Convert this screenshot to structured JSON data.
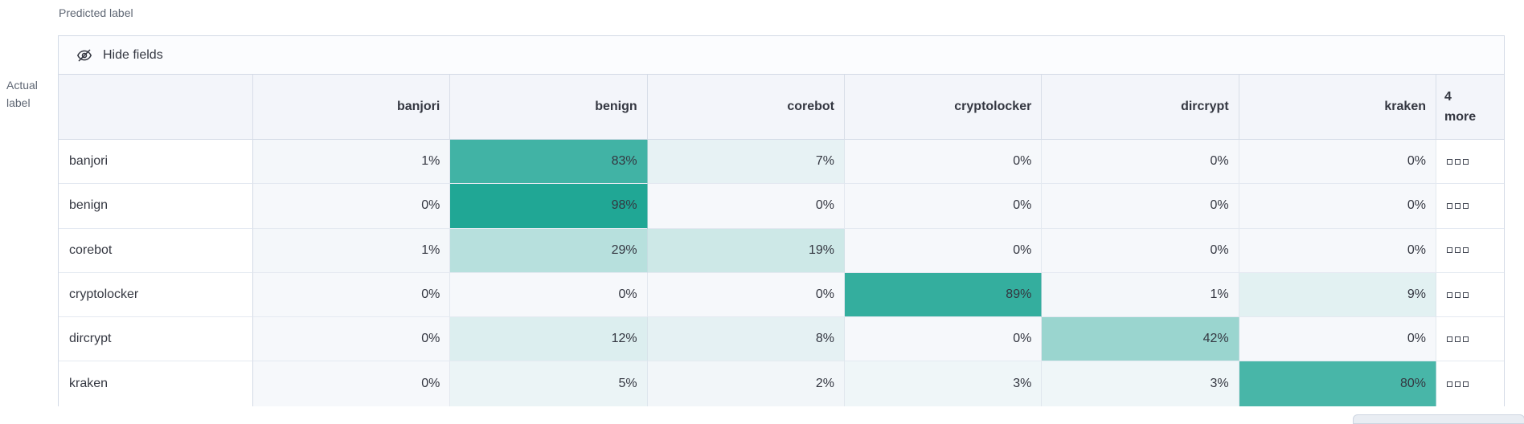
{
  "axes": {
    "predicted_label": "Predicted label",
    "actual_label": "Actual\nlabel"
  },
  "toolbar": {
    "hide_fields_label": "Hide fields"
  },
  "grid": {
    "more_column_header": "4\nmore",
    "more_cell_icon": "more-columns-boxes-icon"
  },
  "chart_data": {
    "type": "heatmap",
    "subtype": "confusion-matrix",
    "x_axis_label": "Predicted label",
    "y_axis_label": "Actual label",
    "columns": [
      "banjori",
      "benign",
      "corebot",
      "cryptolocker",
      "dircrypt",
      "kraken"
    ],
    "overflow_column": {
      "label": "4 more",
      "hidden_count": 4
    },
    "rows": [
      "banjori",
      "benign",
      "corebot",
      "cryptolocker",
      "dircrypt",
      "kraken"
    ],
    "values_percent": [
      [
        1,
        83,
        7,
        0,
        0,
        0
      ],
      [
        0,
        98,
        0,
        0,
        0,
        0
      ],
      [
        1,
        29,
        19,
        0,
        0,
        0
      ],
      [
        0,
        0,
        0,
        89,
        1,
        9
      ],
      [
        0,
        12,
        8,
        0,
        42,
        0
      ],
      [
        0,
        5,
        2,
        3,
        3,
        80
      ]
    ],
    "value_suffix": "%",
    "legend_position": "none",
    "colors": {
      "base_teal": "#1CA593",
      "zero_cell_bg": "#F6F8FB",
      "header_bg": "#F3F5FA",
      "panel_border": "#D3DAE6",
      "text": "#343741"
    }
  }
}
